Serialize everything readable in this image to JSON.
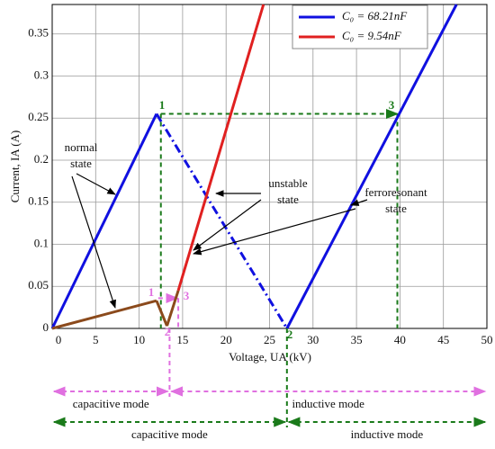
{
  "chart_data": {
    "type": "line",
    "x_label": "Voltage, UA (kV)",
    "y_label": "Current, IA (A)",
    "xlim": [
      0,
      50
    ],
    "ylim": [
      0,
      0.385
    ],
    "xticks": [
      0,
      5,
      10,
      15,
      20,
      25,
      30,
      35,
      40,
      45,
      50
    ],
    "yticks": [
      0,
      0.05,
      0.1,
      0.15,
      0.2,
      0.25,
      0.3,
      0.35
    ],
    "grid": true,
    "legend": "upper right",
    "series": [
      {
        "name": "C₀ = 68.21nF",
        "color": "#1010e0",
        "x": [
          0,
          12,
          27,
          46.5
        ],
        "values": [
          0,
          0.255,
          0,
          0.385
        ],
        "segment_styles": [
          "solid",
          "dashdot",
          "solid"
        ]
      },
      {
        "name": "C₀ = 9.54nF",
        "color": "#e02020",
        "x": [
          14.5,
          24.3
        ],
        "values": [
          0.045,
          0.385
        ],
        "segment_styles": [
          "solid"
        ]
      },
      {
        "color": "#8b4a1c",
        "x": [
          0,
          12,
          13.2,
          14.5
        ],
        "values": [
          0,
          0.033,
          0.003,
          0.045
        ],
        "segment_styles": [
          "solid",
          "solid",
          "solid"
        ]
      }
    ],
    "guide_lines": [
      {
        "color": "#1a7a1a",
        "x": [
          12.5,
          39.7
        ],
        "y": [
          0.255,
          0.255
        ],
        "arrow": true
      },
      {
        "color": "#1a7a1a",
        "x": [
          12.5,
          12.5
        ],
        "y": [
          0.255,
          0
        ],
        "arrow": false
      },
      {
        "color": "#1a7a1a",
        "x": [
          39.7,
          39.7
        ],
        "y": [
          0.255,
          0
        ],
        "arrow": false
      },
      {
        "color": "#e070e0",
        "x": [
          12.2,
          14.4
        ],
        "y": [
          0.036,
          0.036
        ],
        "arrow": true
      },
      {
        "color": "#e070e0",
        "x": [
          14.5,
          14.5
        ],
        "y": [
          0.036,
          0
        ],
        "arrow": false
      }
    ],
    "point_labels": {
      "green": {
        "color": "#1a7a1a",
        "labels": [
          "1",
          "2",
          "3"
        ]
      },
      "pink": {
        "color": "#e070e0",
        "labels": [
          "1",
          "2",
          "3"
        ]
      }
    },
    "annotations": [
      {
        "lines": [
          "normal",
          "state"
        ]
      },
      {
        "lines": [
          "unstable",
          "state"
        ]
      },
      {
        "lines": [
          "ferroresonant",
          "state"
        ]
      }
    ],
    "mode_rows": [
      {
        "color": "#e070e0",
        "split": 13.5,
        "left": "capacitive mode",
        "right": "inductive mode"
      },
      {
        "color": "#1a7a1a",
        "split": 27,
        "left": "capacitive mode",
        "right": "inductive mode"
      }
    ]
  }
}
